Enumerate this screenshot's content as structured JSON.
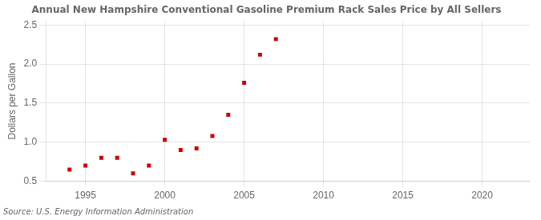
{
  "chart_data": {
    "type": "scatter",
    "title": "Annual New Hampshire Conventional Gasoline Premium Rack Sales Price by All Sellers",
    "ylabel": "Dollars per Gallon",
    "annotations": [
      "Source: U.S. Energy Information Administration"
    ],
    "x": [
      1994,
      1995,
      1996,
      1997,
      1998,
      1999,
      2000,
      2001,
      2002,
      2003,
      2004,
      2005,
      2006,
      2007
    ],
    "values": [
      0.65,
      0.7,
      0.8,
      0.8,
      0.6,
      0.7,
      1.03,
      0.9,
      0.92,
      1.08,
      1.35,
      1.76,
      2.12,
      2.32
    ],
    "color": "#cc0000",
    "marker": "square",
    "xlim": [
      1992.5,
      2023
    ],
    "ylim": [
      0.5,
      2.55
    ],
    "xticks": [
      1995,
      2000,
      2005,
      2010,
      2015,
      2020
    ],
    "yticks": [
      0.5,
      {
        "value": 1.0,
        "label": "1.0"
      },
      1.5,
      {
        "value": 2.0,
        "label": "2.0"
      },
      2.5
    ],
    "grid": true,
    "legend": false
  }
}
